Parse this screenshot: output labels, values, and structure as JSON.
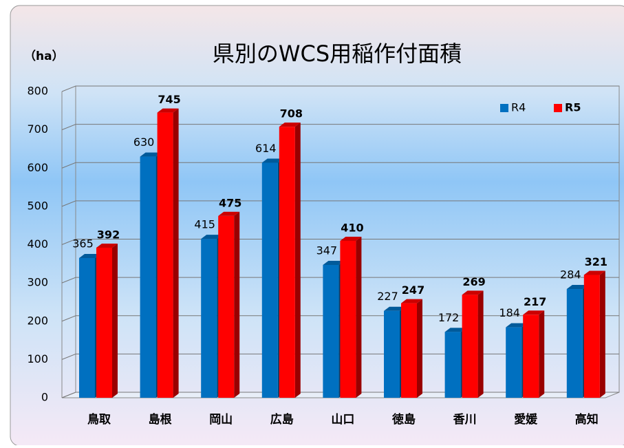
{
  "chart_data": {
    "type": "bar",
    "title": "県別のWCS用稲作付面積",
    "unit_label": "（ha）",
    "categories": [
      "鳥取",
      "島根",
      "岡山",
      "広島",
      "山口",
      "徳島",
      "香川",
      "愛媛",
      "高知"
    ],
    "series": [
      {
        "name": "R4",
        "color": "#0070c0",
        "values": [
          365,
          630,
          415,
          614,
          347,
          227,
          172,
          184,
          284
        ]
      },
      {
        "name": "R5",
        "color": "#ff0000",
        "values": [
          392,
          745,
          475,
          708,
          410,
          247,
          269,
          217,
          321
        ]
      }
    ],
    "ylim": [
      0,
      800
    ],
    "yticks": [
      0,
      100,
      200,
      300,
      400,
      500,
      600,
      700,
      800
    ],
    "grid": true,
    "legend": "top-right"
  }
}
